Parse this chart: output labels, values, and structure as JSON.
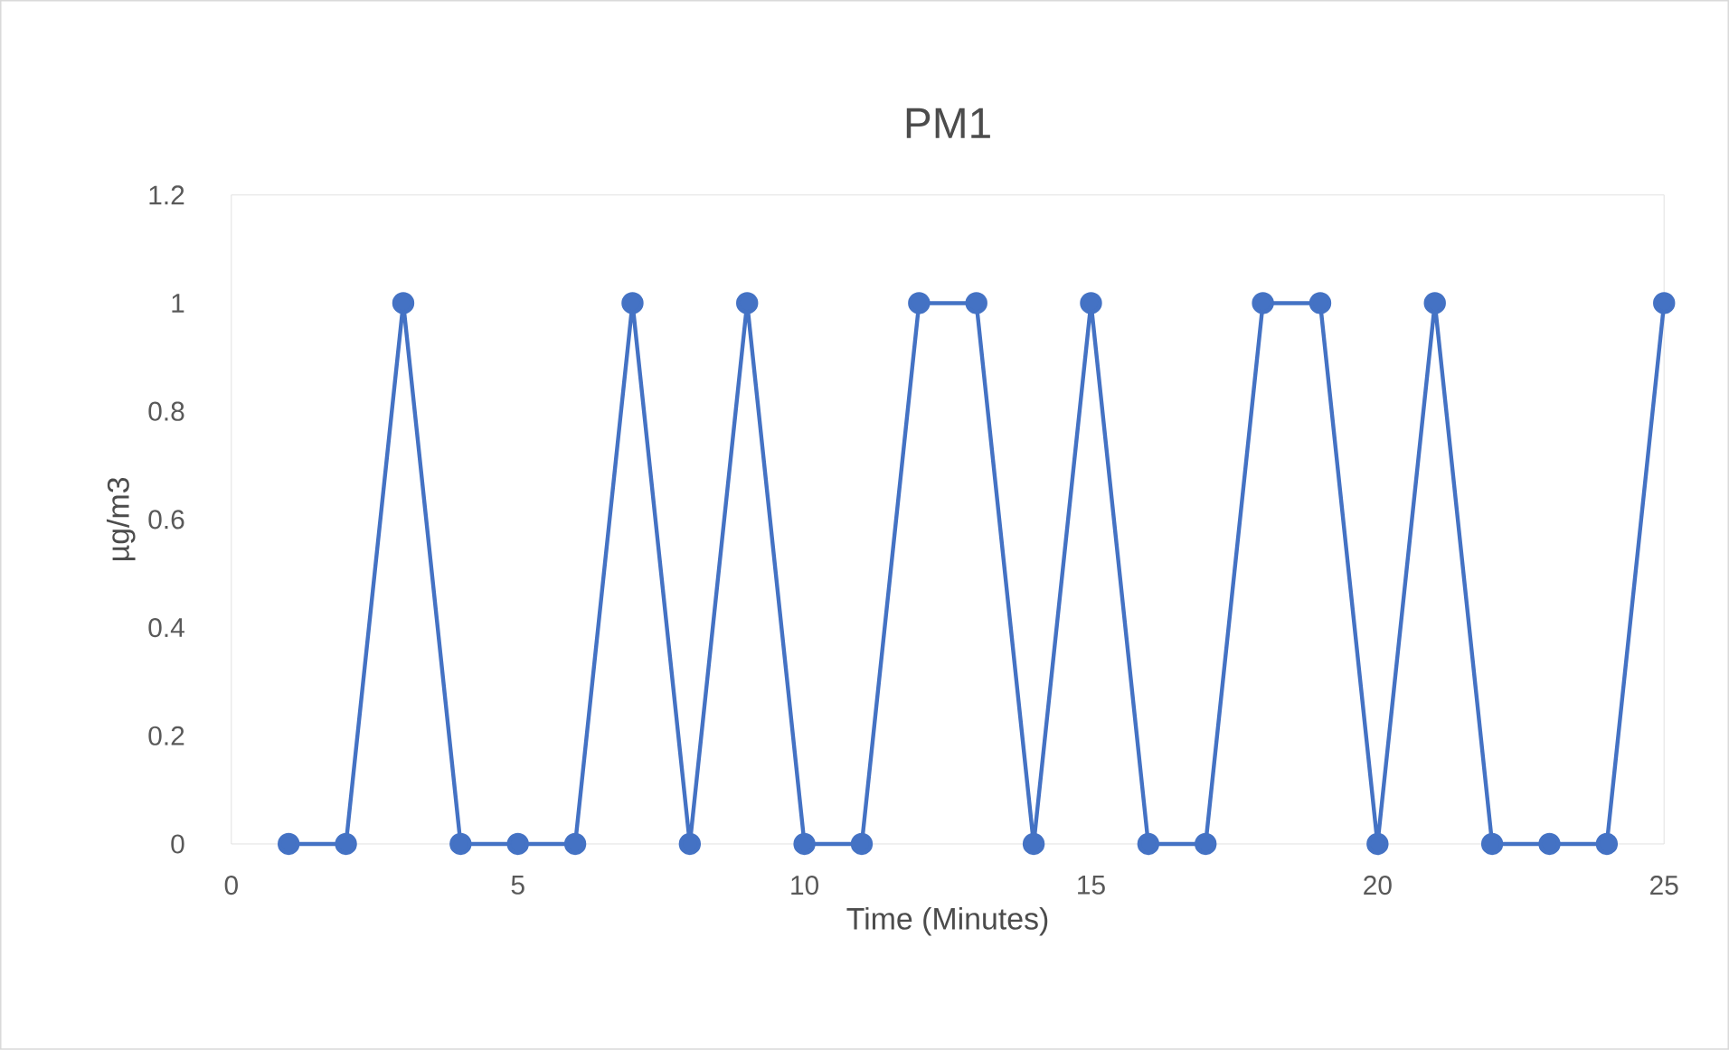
{
  "chart_data": {
    "type": "line",
    "title": "PM1",
    "xlabel": "Time (Minutes)",
    "ylabel": "µg/m3",
    "x": [
      1,
      2,
      3,
      4,
      5,
      6,
      7,
      8,
      9,
      10,
      11,
      12,
      13,
      14,
      15,
      16,
      17,
      18,
      19,
      20,
      21,
      22,
      23,
      24,
      25
    ],
    "values": [
      0,
      0,
      1,
      0,
      0,
      0,
      1,
      0,
      1,
      0,
      0,
      1,
      1,
      0,
      1,
      0,
      0,
      1,
      1,
      0,
      1,
      0,
      0,
      0,
      1
    ],
    "color": "#4472c4",
    "marker": "circle",
    "line_style": "solid",
    "xlim": [
      0,
      25
    ],
    "xticks": [
      0,
      5,
      10,
      15,
      20,
      25
    ],
    "ylim": [
      0,
      1.2
    ],
    "yticks": [
      0,
      0.2,
      0.4,
      0.6,
      0.8,
      1,
      1.2
    ]
  }
}
